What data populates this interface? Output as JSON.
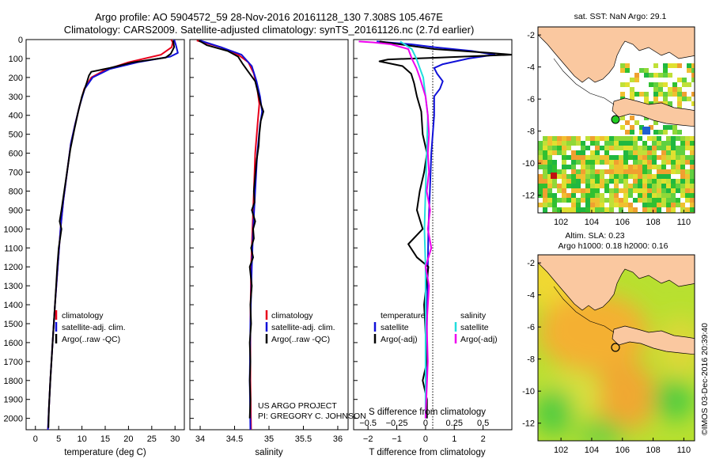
{
  "header": {
    "title_line1": "Argo profile: AO 5904572_59 28-Nov-2016 20161128_130 7.308S 105.467E",
    "title_line2": "Climatology: CARS2009. Satellite-adjusted climatology: synTS_20161126.nc (2.7d earlier)"
  },
  "credits": {
    "project": "US ARGO PROJECT",
    "pi": "PI: GREGORY C. JOHNSON",
    "imos": "©IMOS 03-Dec-2016 20:39:40"
  },
  "colors": {
    "climatology": "#e8001b",
    "satellite": "#1010d8",
    "argo": "#000000",
    "sal_satellite": "#22dddd",
    "sal_argo": "#ee00ee",
    "land": "#fac8a0"
  },
  "depth_axis": {
    "ticks": [
      0,
      100,
      200,
      300,
      400,
      500,
      600,
      700,
      800,
      900,
      1000,
      1100,
      1200,
      1300,
      1400,
      1500,
      1600,
      1700,
      1800,
      1900,
      2000
    ],
    "range": [
      0,
      2060
    ]
  },
  "chart_data": [
    {
      "type": "line",
      "name": "temperature",
      "xlabel": "temperature (deg C)",
      "xticks": [
        0,
        5,
        10,
        15,
        20,
        25,
        30
      ],
      "xlim": [
        -2,
        32
      ],
      "legend": [
        "climatology",
        "satellite-adj. clim.",
        "Argo(..raw -QC)"
      ],
      "series": [
        {
          "name": "climatology",
          "points": [
            [
              29.2,
              0
            ],
            [
              29.5,
              15
            ],
            [
              29.3,
              40
            ],
            [
              27,
              80
            ],
            [
              20,
              120
            ],
            [
              15,
              160
            ],
            [
              12,
              200
            ],
            [
              10.5,
              260
            ],
            [
              9.5,
              350
            ],
            [
              8.5,
              450
            ],
            [
              7.6,
              550
            ],
            [
              6.8,
              700
            ],
            [
              6,
              850
            ],
            [
              5.4,
              1000
            ],
            [
              4.8,
              1200
            ],
            [
              4.2,
              1400
            ],
            [
              3.7,
              1600
            ],
            [
              3.2,
              1800
            ],
            [
              2.9,
              1950
            ],
            [
              2.7,
              2060
            ]
          ]
        },
        {
          "name": "satellite-adj. clim.",
          "points": [
            [
              29.8,
              0
            ],
            [
              30.2,
              30
            ],
            [
              30.6,
              70
            ],
            [
              29,
              90
            ],
            [
              22,
              120
            ],
            [
              16,
              155
            ],
            [
              12.3,
              200
            ],
            [
              10.6,
              260
            ],
            [
              9.5,
              350
            ],
            [
              8.5,
              450
            ],
            [
              7.6,
              550
            ],
            [
              6.8,
              700
            ],
            [
              6,
              850
            ],
            [
              5.4,
              1000
            ],
            [
              4.8,
              1200
            ],
            [
              4.2,
              1400
            ],
            [
              3.7,
              1600
            ],
            [
              3.2,
              1800
            ],
            [
              2.9,
              1950
            ],
            [
              2.7,
              2060
            ]
          ]
        },
        {
          "name": "Argo(..raw -QC)",
          "points": [
            [
              29.6,
              5
            ],
            [
              29.8,
              40
            ],
            [
              29.1,
              75
            ],
            [
              28,
              95
            ],
            [
              21,
              120
            ],
            [
              16,
              150
            ],
            [
              12,
              170
            ],
            [
              11.5,
              190
            ],
            [
              11,
              230
            ],
            [
              10,
              300
            ],
            [
              9.2,
              380
            ],
            [
              8.4,
              470
            ],
            [
              7.5,
              580
            ],
            [
              6.9,
              680
            ],
            [
              6.2,
              800
            ],
            [
              5.6,
              900
            ],
            [
              5.2,
              960
            ],
            [
              5.6,
              1000
            ],
            [
              5,
              1100
            ],
            [
              4.7,
              1200
            ],
            [
              4.2,
              1400
            ],
            [
              3.7,
              1600
            ],
            [
              3.2,
              1800
            ],
            [
              2.9,
              1950
            ],
            [
              2.8,
              2050
            ]
          ]
        }
      ]
    },
    {
      "type": "line",
      "name": "salinity",
      "xlabel": "salinity",
      "xticks": [
        34,
        34.5,
        35,
        35.5,
        36
      ],
      "xtick_labels": [
        "34",
        "34.5",
        "35",
        "35.5",
        "36"
      ],
      "xlim": [
        33.85,
        36.15
      ],
      "legend": [
        "climatology",
        "satellite-adj. clim.",
        "Argo(..raw -QC)"
      ],
      "series": [
        {
          "name": "climatology",
          "points": [
            [
              33.95,
              5
            ],
            [
              34.05,
              15
            ],
            [
              34.3,
              40
            ],
            [
              34.55,
              80
            ],
            [
              34.7,
              120
            ],
            [
              34.78,
              180
            ],
            [
              34.83,
              260
            ],
            [
              34.86,
              340
            ],
            [
              34.84,
              420
            ],
            [
              34.8,
              600
            ],
            [
              34.78,
              800
            ],
            [
              34.76,
              1000
            ],
            [
              34.74,
              1200
            ],
            [
              34.73,
              1500
            ],
            [
              34.73,
              1800
            ],
            [
              34.74,
              2060
            ]
          ]
        },
        {
          "name": "satellite-adj. clim.",
          "points": [
            [
              34.0,
              5
            ],
            [
              34.3,
              40
            ],
            [
              34.6,
              80
            ],
            [
              34.75,
              140
            ],
            [
              34.82,
              220
            ],
            [
              34.87,
              300
            ],
            [
              34.9,
              380
            ],
            [
              34.87,
              450
            ],
            [
              34.83,
              600
            ],
            [
              34.8,
              800
            ],
            [
              34.77,
              1000
            ],
            [
              34.75,
              1200
            ],
            [
              34.73,
              1500
            ],
            [
              34.72,
              1800
            ],
            [
              34.73,
              2060
            ]
          ]
        },
        {
          "name": "Argo(..raw -QC)",
          "points": [
            [
              33.98,
              5
            ],
            [
              34.1,
              30
            ],
            [
              34.4,
              60
            ],
            [
              34.55,
              90
            ],
            [
              34.62,
              130
            ],
            [
              34.7,
              170
            ],
            [
              34.8,
              220
            ],
            [
              34.84,
              280
            ],
            [
              34.88,
              340
            ],
            [
              34.92,
              380
            ],
            [
              34.88,
              430
            ],
            [
              34.86,
              500
            ],
            [
              34.85,
              560
            ],
            [
              34.82,
              640
            ],
            [
              34.8,
              720
            ],
            [
              34.78,
              800
            ],
            [
              34.79,
              860
            ],
            [
              34.75,
              900
            ],
            [
              34.8,
              960
            ],
            [
              34.77,
              1000
            ],
            [
              34.78,
              1050
            ],
            [
              34.74,
              1100
            ],
            [
              34.77,
              1150
            ],
            [
              34.72,
              1200
            ],
            [
              34.75,
              1300
            ],
            [
              34.73,
              1400
            ],
            [
              34.74,
              1500
            ],
            [
              34.72,
              1600
            ],
            [
              34.73,
              1700
            ],
            [
              34.72,
              1800
            ],
            [
              34.73,
              1900
            ],
            [
              34.72,
              2000
            ]
          ]
        }
      ]
    },
    {
      "type": "line",
      "name": "difference",
      "xlabel_top": "S difference from climatology",
      "xlabel": "T difference from climatology",
      "xlim": [
        -2.5,
        3
      ],
      "xticks": [
        -2,
        -1,
        0,
        1,
        2
      ],
      "xtick_labels": [
        "−2",
        "−1",
        "0",
        "1",
        "2"
      ],
      "sticks": [
        -0.5,
        -0.25,
        0,
        0.25,
        0.5
      ],
      "stick_labels": [
        "−0.5",
        "−0.25",
        "0",
        "0.25",
        "0.5"
      ],
      "slim": [
        -0.625,
        0.75
      ],
      "legend_temperature": {
        "heading": "temperature",
        "items": [
          "satellite",
          "Argo(-adj)"
        ]
      },
      "legend_salinity": {
        "heading": "salinity",
        "items": [
          "satellite",
          "Argo(-adj)"
        ]
      },
      "series": [
        {
          "name": "T satellite",
          "axis": "T",
          "points": [
            [
              -1.7,
              10
            ],
            [
              -0.5,
              25
            ],
            [
              0.3,
              40
            ],
            [
              1.6,
              60
            ],
            [
              2.4,
              80
            ],
            [
              1.5,
              100
            ],
            [
              0.6,
              130
            ],
            [
              0.3,
              150
            ],
            [
              0.4,
              180
            ],
            [
              0.6,
              220
            ],
            [
              0.5,
              260
            ],
            [
              0.3,
              300
            ],
            [
              0.3,
              400
            ],
            [
              0.2,
              600
            ],
            [
              0.15,
              800
            ],
            [
              0.1,
              1000
            ],
            [
              0.05,
              1500
            ],
            [
              0.02,
              2000
            ]
          ]
        },
        {
          "name": "T Argo(-adj)",
          "axis": "T",
          "points": [
            [
              -1.6,
              10
            ],
            [
              0.3,
              50
            ],
            [
              2.2,
              70
            ],
            [
              3,
              80
            ],
            [
              0.5,
              95
            ],
            [
              -1.3,
              105
            ],
            [
              -1.6,
              115
            ],
            [
              -0.8,
              140
            ],
            [
              -0.5,
              180
            ],
            [
              -0.4,
              230
            ],
            [
              -0.3,
              300
            ],
            [
              -0.15,
              380
            ],
            [
              -0.1,
              500
            ],
            [
              0.05,
              600
            ],
            [
              -0.05,
              700
            ],
            [
              -0.2,
              800
            ],
            [
              -0.3,
              900
            ],
            [
              -0.1,
              1000
            ],
            [
              -0.6,
              1080
            ],
            [
              -0.3,
              1150
            ],
            [
              0.1,
              1200
            ],
            [
              -0.05,
              1400
            ],
            [
              0.05,
              1700
            ],
            [
              -0.1,
              1800
            ],
            [
              0.05,
              1900
            ],
            [
              0.05,
              2000
            ]
          ]
        },
        {
          "name": "S satellite",
          "axis": "S",
          "points": [
            [
              -0.22,
              10
            ],
            [
              -0.12,
              50
            ],
            [
              -0.08,
              100
            ],
            [
              -0.05,
              150
            ],
            [
              -0.02,
              200
            ],
            [
              0.0,
              300
            ],
            [
              0.02,
              400
            ],
            [
              0.01,
              600
            ],
            [
              0.0,
              800
            ],
            [
              -0.01,
              1000
            ],
            [
              0.0,
              1200
            ],
            [
              0.0,
              1500
            ],
            [
              0.0,
              1800
            ],
            [
              0.0,
              2000
            ]
          ]
        },
        {
          "name": "S Argo(-adj)",
          "axis": "S",
          "points": [
            [
              -0.58,
              10
            ],
            [
              -0.45,
              15
            ],
            [
              -0.3,
              25
            ],
            [
              -0.15,
              50
            ],
            [
              -0.12,
              100
            ],
            [
              -0.08,
              150
            ],
            [
              -0.05,
              200
            ],
            [
              0.0,
              300
            ],
            [
              0.02,
              400
            ],
            [
              0.03,
              500
            ],
            [
              0.02,
              600
            ],
            [
              0.03,
              700
            ],
            [
              0.01,
              800
            ],
            [
              0.04,
              900
            ],
            [
              0.02,
              1000
            ],
            [
              0.05,
              1100
            ],
            [
              0.0,
              1200
            ],
            [
              0.03,
              1300
            ],
            [
              0.01,
              1500
            ],
            [
              0.02,
              1700
            ],
            [
              0.0,
              2000
            ]
          ]
        }
      ]
    },
    {
      "type": "heatmap",
      "name": "sst-map",
      "title": "sat. SST: NaN Argo: 29.1",
      "xticks": [
        102,
        104,
        106,
        108,
        110
      ],
      "yticks": [
        -2,
        -4,
        -6,
        -8,
        -10,
        -12
      ],
      "xlim": [
        100.5,
        110.7
      ],
      "ylim": [
        -13.1,
        -1.5
      ],
      "float_position": [
        105.467,
        -7.308
      ]
    },
    {
      "type": "heatmap",
      "name": "sla-map",
      "title_line1": "Altim. SLA: 0.23",
      "title_line2": "Argo h1000: 0.18 h2000: 0.16",
      "xticks": [
        102,
        104,
        106,
        108,
        110
      ],
      "yticks": [
        -2,
        -4,
        -6,
        -8,
        -10,
        -12
      ],
      "xlim": [
        100.5,
        110.7
      ],
      "ylim": [
        -13.1,
        -1.5
      ],
      "float_position": [
        105.467,
        -7.308
      ]
    }
  ]
}
